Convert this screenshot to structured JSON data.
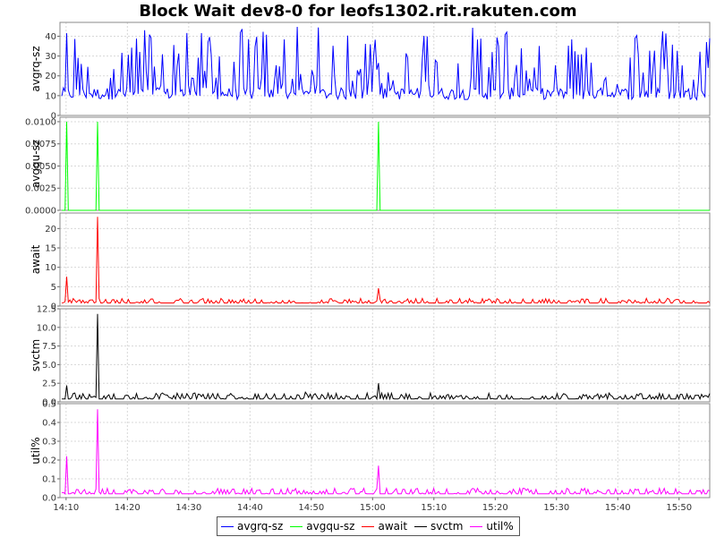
{
  "title": "Block Wait dev8-0 for leofs1302.rit.rakuten.com",
  "chart_data": [
    {
      "type": "line",
      "ylabel": "avgrq-sz",
      "ylim": [
        0,
        47
      ],
      "yticks": [
        0,
        10,
        20,
        30,
        40
      ],
      "ytick_labels": [
        "0",
        "10",
        "20",
        "30",
        "40"
      ],
      "color": "#0000ff",
      "series": [
        {
          "name": "avgrq-sz",
          "pattern": "oscillating",
          "baseline": 10,
          "peak_range": [
            15,
            45
          ]
        }
      ]
    },
    {
      "type": "line",
      "ylabel": "avgqu-sz",
      "ylim": [
        0,
        0.0105
      ],
      "yticks": [
        0,
        0.0025,
        0.005,
        0.0075,
        0.01
      ],
      "ytick_labels": [
        "0.0000",
        "0.0025",
        "0.0050",
        "0.0075",
        "0.0100"
      ],
      "color": "#00ff00",
      "series": [
        {
          "name": "avgqu-sz",
          "baseline": 0,
          "spikes": [
            [
              "14:10",
              0.01
            ],
            [
              "14:15",
              0.01
            ],
            [
              "15:01",
              0.01
            ]
          ]
        }
      ]
    },
    {
      "type": "line",
      "ylabel": "await",
      "ylim": [
        0,
        24
      ],
      "yticks": [
        0,
        5,
        10,
        15,
        20
      ],
      "ytick_labels": [
        "0",
        "5",
        "10",
        "15",
        "20"
      ],
      "color": "#ff0000",
      "series": [
        {
          "name": "await",
          "baseline": 0.8,
          "noise": 1.2,
          "spikes": [
            [
              "14:10",
              7.6
            ],
            [
              "14:15",
              23
            ],
            [
              "15:01",
              4.6
            ]
          ]
        }
      ]
    },
    {
      "type": "line",
      "ylabel": "svctm",
      "ylim": [
        0,
        12.5
      ],
      "yticks": [
        0,
        2.5,
        5,
        7.5,
        10,
        12.5
      ],
      "ytick_labels": [
        "0.0",
        "2.5",
        "5.0",
        "7.5",
        "10.0",
        "12.5"
      ],
      "color": "#000000",
      "series": [
        {
          "name": "svctm",
          "baseline": 0.4,
          "noise": 0.8,
          "spikes": [
            [
              "14:10",
              2.2
            ],
            [
              "14:15",
              11.8
            ],
            [
              "14:49",
              1.3
            ],
            [
              "15:01",
              2.5
            ]
          ]
        }
      ]
    },
    {
      "type": "line",
      "ylabel": "util%",
      "ylim": [
        0,
        0.5
      ],
      "yticks": [
        0,
        0.1,
        0.2,
        0.3,
        0.4,
        0.5
      ],
      "ytick_labels": [
        "0.0",
        "0.1",
        "0.2",
        "0.3",
        "0.4",
        "0.5"
      ],
      "color": "#ff00ff",
      "series": [
        {
          "name": "util%",
          "baseline": 0.02,
          "noise": 0.03,
          "spikes": [
            [
              "14:10",
              0.22
            ],
            [
              "14:15",
              0.47
            ],
            [
              "15:01",
              0.17
            ]
          ]
        }
      ]
    }
  ],
  "x_axis": {
    "range": [
      "14:09",
      "15:55"
    ],
    "ticks": [
      "14:10",
      "14:20",
      "14:30",
      "14:40",
      "14:50",
      "15:00",
      "15:10",
      "15:20",
      "15:30",
      "15:40",
      "15:50"
    ]
  },
  "legend": {
    "placement": "bottom",
    "items": [
      {
        "label": "avgrq-sz",
        "color": "#0000ff"
      },
      {
        "label": "avgqu-sz",
        "color": "#00ff00"
      },
      {
        "label": "await",
        "color": "#ff0000"
      },
      {
        "label": "svctm",
        "color": "#000000"
      },
      {
        "label": "util%",
        "color": "#ff00ff"
      }
    ]
  }
}
